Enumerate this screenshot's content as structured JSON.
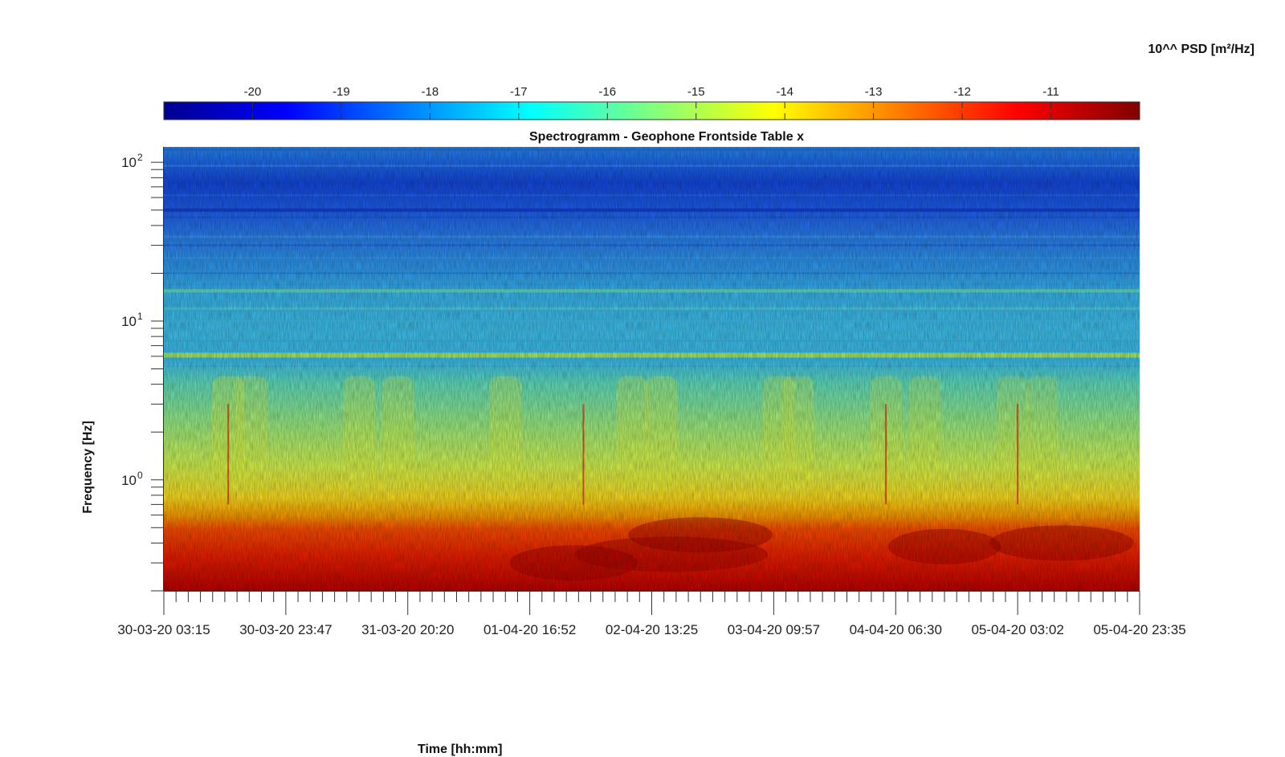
{
  "chart_data": {
    "type": "heatmap",
    "title": "Spectrogramm - Geophone Frontside Table x",
    "xlabel": "Time [hh:mm]",
    "ylabel": "Frequency [Hz]",
    "x_ticks": [
      "30-03-20 03:15",
      "30-03-20 23:47",
      "31-03-20 20:20",
      "01-04-20 16:52",
      "02-04-20 13:25",
      "03-04-20 09:57",
      "04-04-20 06:30",
      "05-04-20 03:02",
      "05-04-20 23:35"
    ],
    "y_scale": "log",
    "ylim": [
      0.2,
      125
    ],
    "y_ticks": [
      {
        "base": "10",
        "exp": "0",
        "value": 1
      },
      {
        "base": "10",
        "exp": "1",
        "value": 10
      },
      {
        "base": "10",
        "exp": "2",
        "value": 100
      }
    ],
    "colorbar": {
      "label": "10^^ PSD [m²/Hz]",
      "range": [
        -21,
        -10
      ],
      "ticks": [
        -20,
        -19,
        -18,
        -17,
        -16,
        -15,
        -14,
        -13,
        -12,
        -11
      ],
      "colormap": "jet"
    },
    "grid": false
  }
}
